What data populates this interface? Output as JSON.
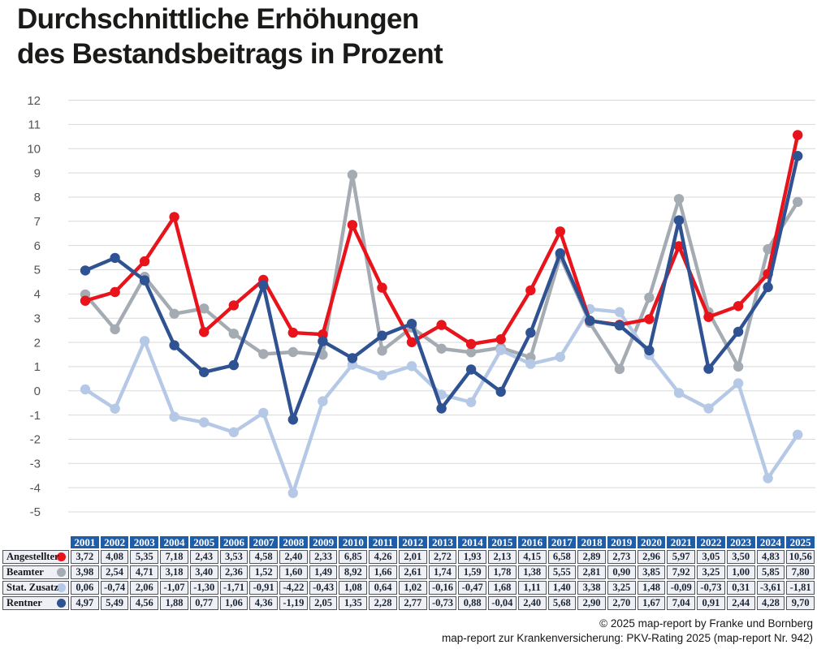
{
  "title": {
    "line1": "Durchschnittliche Erhöhungen",
    "line2": "des Bestandsbeitrags in Prozent"
  },
  "chart_data": {
    "type": "line",
    "title": "Durchschnittliche Erhöhungen des Bestandsbeitrags in Prozent",
    "categories": [
      2001,
      2002,
      2003,
      2004,
      2005,
      2006,
      2007,
      2008,
      2009,
      2010,
      2011,
      2012,
      2013,
      2014,
      2015,
      2016,
      2017,
      2018,
      2019,
      2020,
      2021,
      2022,
      2023,
      2024,
      2025
    ],
    "series": [
      {
        "name": "Angestellter",
        "color": "#e8131b",
        "values": [
          3.72,
          4.08,
          5.35,
          7.18,
          2.43,
          3.53,
          4.58,
          2.4,
          2.33,
          6.85,
          4.26,
          2.01,
          2.72,
          1.93,
          2.13,
          4.15,
          6.58,
          2.89,
          2.73,
          2.96,
          5.97,
          3.05,
          3.5,
          4.83,
          10.56
        ]
      },
      {
        "name": "Beamter",
        "color": "#a5abb2",
        "values": [
          3.98,
          2.54,
          4.71,
          3.18,
          3.4,
          2.36,
          1.52,
          1.6,
          1.49,
          8.92,
          1.66,
          2.61,
          1.74,
          1.59,
          1.78,
          1.38,
          5.55,
          2.81,
          0.9,
          3.85,
          7.92,
          3.25,
          1.0,
          5.85,
          7.8
        ]
      },
      {
        "name": "Stat. Zusatz",
        "color": "#b5c9e7",
        "values": [
          0.06,
          -0.74,
          2.06,
          -1.07,
          -1.3,
          -1.71,
          -0.91,
          -4.22,
          -0.43,
          1.08,
          0.64,
          1.02,
          -0.16,
          -0.47,
          1.68,
          1.11,
          1.4,
          3.38,
          3.25,
          1.48,
          -0.09,
          -0.73,
          0.31,
          -3.61,
          -1.81
        ]
      },
      {
        "name": "Rentner",
        "color": "#2f5292",
        "values": [
          4.97,
          5.49,
          4.56,
          1.88,
          0.77,
          1.06,
          4.36,
          -1.19,
          2.05,
          1.35,
          2.28,
          2.77,
          -0.73,
          0.88,
          -0.04,
          2.4,
          5.68,
          2.9,
          2.7,
          1.67,
          7.04,
          0.91,
          2.44,
          4.28,
          9.7
        ]
      }
    ],
    "z_order": [
      "Beamter",
      "Stat. Zusatz",
      "Angestellter",
      "Rentner"
    ],
    "ylim": [
      -5,
      12
    ],
    "ytick_step": 1,
    "yticks": [
      12,
      11,
      10,
      9,
      8,
      7,
      6,
      5,
      4,
      3,
      2,
      1,
      0,
      -1,
      -2,
      -3,
      -4,
      -5
    ],
    "grid": true,
    "grid_color": "#d8d9da",
    "legend_position": "table-left",
    "decimal_separator": ","
  },
  "table": {
    "corner_label": "",
    "row_labels": [
      "Angestellter",
      "Beamter",
      "Stat. Zusatz",
      "Rentner"
    ]
  },
  "footer": {
    "line1": "© 2025 map-report by Franke und Bornberg",
    "line2": "map-report zur Krankenversicherung: PKV-Rating 2025 (map-report Nr. 942)"
  },
  "colors": {
    "table_header_bg": "#1e5da9",
    "table_cell_bg": "#eef0f5",
    "table_border": "#50555c",
    "axis_label": "#515457"
  }
}
